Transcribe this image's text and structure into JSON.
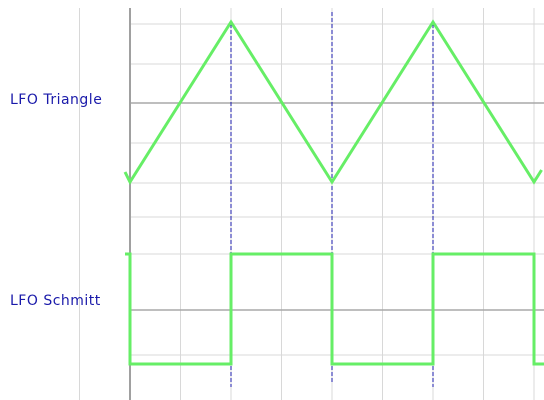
{
  "labels": {
    "triangle": "LFO Triangle",
    "schmitt": "LFO Schmitt"
  },
  "colors": {
    "background": "#ffffff",
    "grid_minor": "#d8d8d8",
    "grid_major": "#a8a8a8",
    "axis": "#a0a0a0",
    "trace": "#66ee66",
    "marker": "#1a1aaa",
    "label_text": "#1a1aaa"
  },
  "signals": {
    "triangle": {
      "shape": "triangle",
      "period_divisions": 4,
      "phase_divisions": 0,
      "min_level": 0,
      "max_level": 1
    },
    "schmitt": {
      "shape": "square",
      "states": [
        0,
        1,
        0,
        1,
        0
      ],
      "transitions_divisions": [
        2,
        4,
        6,
        8
      ]
    }
  },
  "markers": {
    "style": "dashed",
    "positions_divisions": [
      2,
      4,
      6
    ]
  }
}
